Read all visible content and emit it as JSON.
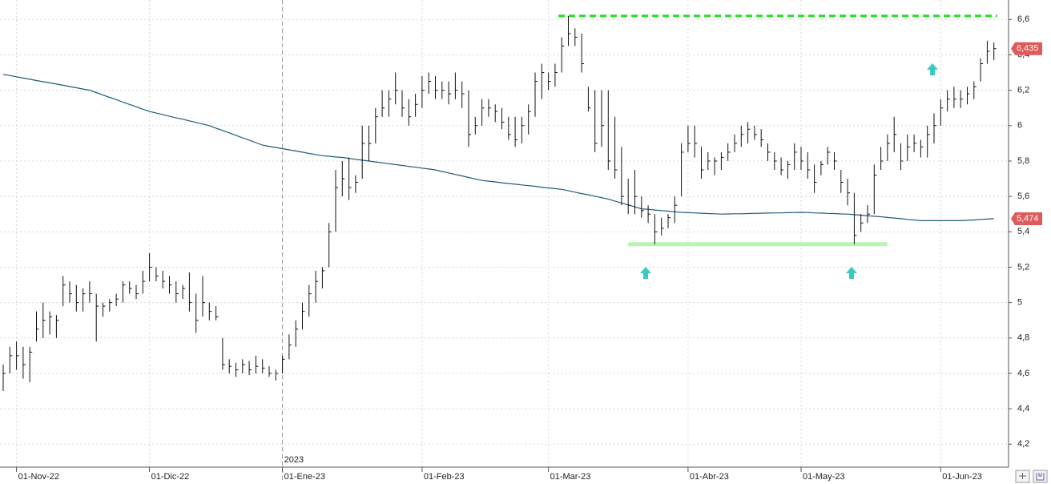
{
  "chart_data": {
    "type": "ohlc",
    "categories": [
      null,
      null,
      "01-Nov-22",
      null,
      null,
      null,
      null,
      null,
      null,
      null,
      null,
      null,
      null,
      null,
      null,
      null,
      null,
      null,
      null,
      null,
      null,
      null,
      "01-Dic-22",
      null,
      null,
      null,
      null,
      null,
      null,
      null,
      null,
      null,
      null,
      null,
      null,
      null,
      null,
      null,
      null,
      null,
      null,
      null,
      "01-Ene-23",
      null,
      null,
      null,
      null,
      null,
      null,
      null,
      null,
      null,
      null,
      null,
      null,
      null,
      null,
      null,
      null,
      null,
      null,
      null,
      null,
      "01-Feb-23",
      null,
      null,
      null,
      null,
      null,
      null,
      null,
      null,
      null,
      null,
      null,
      null,
      null,
      null,
      null,
      null,
      null,
      null,
      "01-Mar-23",
      null,
      null,
      null,
      null,
      null,
      null,
      null,
      null,
      null,
      null,
      null,
      null,
      null,
      null,
      null,
      null,
      null,
      null,
      null,
      null,
      "01-Abr-23",
      null,
      null,
      null,
      null,
      null,
      null,
      null,
      null,
      null,
      null,
      null,
      null,
      null,
      null,
      null,
      null,
      "01-May-23",
      null,
      null,
      null,
      null,
      null,
      null,
      null,
      null,
      null,
      null,
      null,
      null,
      null,
      null,
      null,
      null,
      null,
      null,
      null,
      null,
      "01-Jun-23",
      null,
      null,
      null,
      null,
      null,
      null,
      null,
      null
    ],
    "high": [
      4.65,
      4.75,
      4.78,
      4.75,
      4.75,
      4.95,
      5.0,
      4.95,
      4.93,
      5.15,
      5.12,
      5.1,
      5.08,
      5.12,
      5.05,
      5.0,
      5.02,
      5.05,
      5.12,
      5.12,
      5.1,
      5.18,
      5.28,
      5.2,
      5.18,
      5.15,
      5.12,
      5.1,
      5.17,
      5.05,
      5.15,
      5.0,
      4.98,
      4.8,
      4.68,
      4.66,
      4.68,
      4.67,
      4.7,
      4.68,
      4.64,
      4.62,
      4.7,
      4.82,
      4.9,
      5.0,
      5.1,
      5.18,
      5.2,
      5.45,
      5.75,
      5.8,
      5.82,
      5.72,
      6.0,
      6.0,
      6.1,
      6.2,
      6.2,
      6.3,
      6.2,
      6.15,
      6.18,
      6.28,
      6.3,
      6.28,
      6.25,
      6.25,
      6.3,
      6.25,
      6.2,
      6.05,
      6.15,
      6.15,
      6.12,
      6.1,
      6.05,
      6.05,
      6.05,
      6.12,
      6.3,
      6.35,
      6.3,
      6.35,
      6.5,
      6.62,
      6.55,
      6.52,
      6.22,
      6.2,
      6.2,
      6.2,
      6.05,
      5.88,
      5.7,
      5.75,
      5.6,
      5.55,
      5.5,
      5.48,
      5.5,
      5.6,
      5.9,
      6.0,
      6.0,
      5.88,
      5.85,
      5.82,
      5.85,
      5.9,
      5.95,
      6.0,
      6.02,
      6.0,
      5.98,
      5.9,
      5.85,
      5.82,
      5.8,
      5.9,
      5.88,
      5.85,
      5.78,
      5.8,
      5.88,
      5.85,
      5.75,
      5.7,
      5.62,
      5.5,
      5.55,
      5.78,
      5.88,
      5.95,
      6.05,
      5.9,
      5.95,
      5.95,
      5.92,
      6.0,
      6.07,
      6.15,
      6.2,
      6.22,
      6.2,
      6.22,
      6.25,
      6.38,
      6.48,
      6.47
    ],
    "low": [
      4.5,
      4.6,
      4.62,
      4.57,
      4.55,
      4.78,
      4.8,
      4.82,
      4.8,
      4.98,
      5.0,
      4.95,
      4.95,
      5.0,
      4.78,
      4.92,
      4.95,
      4.98,
      5.0,
      5.05,
      5.02,
      5.05,
      5.12,
      5.12,
      5.08,
      5.05,
      5.0,
      5.02,
      4.95,
      4.83,
      4.92,
      4.9,
      4.9,
      4.62,
      4.6,
      4.58,
      4.6,
      4.59,
      4.6,
      4.6,
      4.58,
      4.56,
      4.6,
      4.68,
      4.75,
      4.85,
      4.92,
      5.0,
      5.08,
      5.2,
      5.4,
      5.6,
      5.58,
      5.62,
      5.7,
      5.8,
      5.9,
      6.05,
      6.05,
      6.12,
      6.05,
      6.0,
      6.05,
      6.1,
      6.18,
      6.15,
      6.15,
      6.12,
      6.15,
      6.1,
      5.88,
      5.95,
      6.0,
      6.05,
      6.02,
      5.98,
      5.92,
      5.88,
      5.9,
      5.95,
      6.05,
      6.15,
      6.2,
      6.22,
      6.3,
      6.45,
      6.45,
      6.3,
      6.08,
      5.85,
      5.88,
      5.75,
      5.7,
      5.55,
      5.5,
      5.5,
      5.48,
      5.45,
      5.33,
      5.38,
      5.42,
      5.45,
      5.6,
      5.85,
      5.82,
      5.7,
      5.75,
      5.72,
      5.75,
      5.8,
      5.85,
      5.88,
      5.9,
      5.92,
      5.88,
      5.8,
      5.75,
      5.72,
      5.7,
      5.75,
      5.75,
      5.7,
      5.62,
      5.72,
      5.78,
      5.75,
      5.62,
      5.55,
      5.33,
      5.4,
      5.45,
      5.5,
      5.75,
      5.8,
      5.85,
      5.75,
      5.8,
      5.85,
      5.82,
      5.82,
      5.9,
      6.0,
      6.08,
      6.1,
      6.1,
      6.12,
      6.15,
      6.25,
      6.35,
      6.37
    ],
    "close": [
      4.6,
      4.7,
      4.7,
      4.65,
      4.72,
      4.85,
      4.9,
      4.92,
      4.9,
      5.1,
      5.05,
      5.0,
      5.05,
      5.05,
      4.98,
      4.98,
      5.0,
      5.02,
      5.1,
      5.08,
      5.05,
      5.12,
      5.2,
      5.15,
      5.12,
      5.1,
      5.05,
      5.08,
      5.0,
      4.9,
      5.0,
      4.95,
      4.92,
      4.65,
      4.64,
      4.62,
      4.65,
      4.62,
      4.64,
      4.63,
      4.6,
      4.6,
      4.68,
      4.76,
      4.85,
      4.95,
      5.05,
      5.12,
      5.18,
      5.4,
      5.65,
      5.7,
      5.65,
      5.68,
      5.9,
      5.9,
      6.05,
      6.1,
      6.15,
      6.2,
      6.1,
      6.05,
      6.12,
      6.2,
      6.25,
      6.2,
      6.2,
      6.18,
      6.2,
      6.18,
      5.95,
      6.0,
      6.1,
      6.1,
      6.08,
      6.02,
      5.95,
      5.92,
      6.0,
      6.08,
      6.25,
      6.3,
      6.25,
      6.3,
      6.45,
      6.52,
      6.5,
      6.35,
      6.1,
      5.9,
      6.0,
      5.8,
      5.75,
      5.6,
      5.55,
      5.6,
      5.52,
      5.5,
      5.4,
      5.42,
      5.48,
      5.55,
      5.85,
      5.9,
      5.9,
      5.75,
      5.8,
      5.8,
      5.82,
      5.85,
      5.9,
      5.95,
      5.98,
      5.95,
      5.92,
      5.85,
      5.8,
      5.75,
      5.78,
      5.85,
      5.8,
      5.75,
      5.68,
      5.78,
      5.85,
      5.8,
      5.68,
      5.62,
      5.38,
      5.45,
      5.5,
      5.72,
      5.8,
      5.9,
      5.95,
      5.8,
      5.88,
      5.9,
      5.88,
      5.95,
      6.0,
      6.1,
      6.15,
      6.15,
      6.15,
      6.18,
      6.22,
      6.35,
      6.42,
      6.435
    ],
    "bar_color": "#111111",
    "moving_average": {
      "color": "#1d5b79",
      "values": [
        6.29,
        6.283,
        6.276,
        6.269,
        6.262,
        6.255,
        6.248,
        6.242,
        6.235,
        6.228,
        6.221,
        6.214,
        6.207,
        6.2,
        6.187,
        6.173,
        6.16,
        6.147,
        6.133,
        6.12,
        6.107,
        6.093,
        6.08,
        6.071,
        6.062,
        6.053,
        6.044,
        6.036,
        6.027,
        6.018,
        6.009,
        6.0,
        5.986,
        5.973,
        5.959,
        5.945,
        5.931,
        5.918,
        5.904,
        5.89,
        5.883,
        5.877,
        5.87,
        5.863,
        5.857,
        5.85,
        5.843,
        5.837,
        5.83,
        5.827,
        5.823,
        5.82,
        5.815,
        5.81,
        5.805,
        5.8,
        5.795,
        5.79,
        5.785,
        5.78,
        5.775,
        5.77,
        5.765,
        5.76,
        5.755,
        5.75,
        5.741,
        5.733,
        5.724,
        5.716,
        5.707,
        5.699,
        5.69,
        5.686,
        5.682,
        5.677,
        5.673,
        5.669,
        5.665,
        5.661,
        5.657,
        5.652,
        5.648,
        5.644,
        5.64,
        5.632,
        5.624,
        5.616,
        5.609,
        5.601,
        5.593,
        5.585,
        5.574,
        5.563,
        5.552,
        5.541,
        5.53,
        5.527,
        5.523,
        5.52,
        5.517,
        5.513,
        5.51,
        5.508,
        5.507,
        5.505,
        5.503,
        5.502,
        5.5,
        5.501,
        5.502,
        5.502,
        5.503,
        5.504,
        5.505,
        5.506,
        5.507,
        5.507,
        5.508,
        5.509,
        5.51,
        5.509,
        5.507,
        5.506,
        5.504,
        5.503,
        5.501,
        5.5,
        5.497,
        5.494,
        5.491,
        5.488,
        5.485,
        5.481,
        5.478,
        5.474,
        5.47,
        5.467,
        5.463,
        5.463,
        5.463,
        5.463,
        5.463,
        5.463,
        5.463,
        5.465,
        5.467,
        5.47,
        5.472,
        5.474
      ]
    },
    "price_tags": [
      {
        "value": 6.435,
        "label": "6,435",
        "color": "#e05a5a"
      },
      {
        "value": 5.474,
        "label": "5,474",
        "color": "#e05a5a"
      }
    ],
    "levels": [
      {
        "value": 6.62,
        "color": "#22dd22",
        "style": "dashed",
        "start": 83.5,
        "end": 149.5
      },
      {
        "value": 5.33,
        "color": "#b8f5b0",
        "style": "solid",
        "start": 94,
        "end": 133
      }
    ],
    "year_marker": {
      "index": 42,
      "label": "2023"
    },
    "ylim": [
      4.07,
      6.71
    ],
    "yticks": [
      {
        "value": 4.2,
        "label": "4,2"
      },
      {
        "value": 4.4,
        "label": "4,4"
      },
      {
        "value": 4.6,
        "label": "4,6"
      },
      {
        "value": 4.8,
        "label": "4,8"
      },
      5,
      {
        "value": 5.2,
        "label": "5,2"
      },
      {
        "value": 5.4,
        "label": "5,4"
      },
      {
        "value": 5.6,
        "label": "5,6"
      },
      {
        "value": 5.8,
        "label": "5,8"
      },
      6,
      {
        "value": 6.2,
        "label": "6,2"
      },
      {
        "value": 6.4,
        "label": "6,4"
      },
      {
        "value": 6.6,
        "label": "6,6"
      }
    ],
    "grid": true
  }
}
